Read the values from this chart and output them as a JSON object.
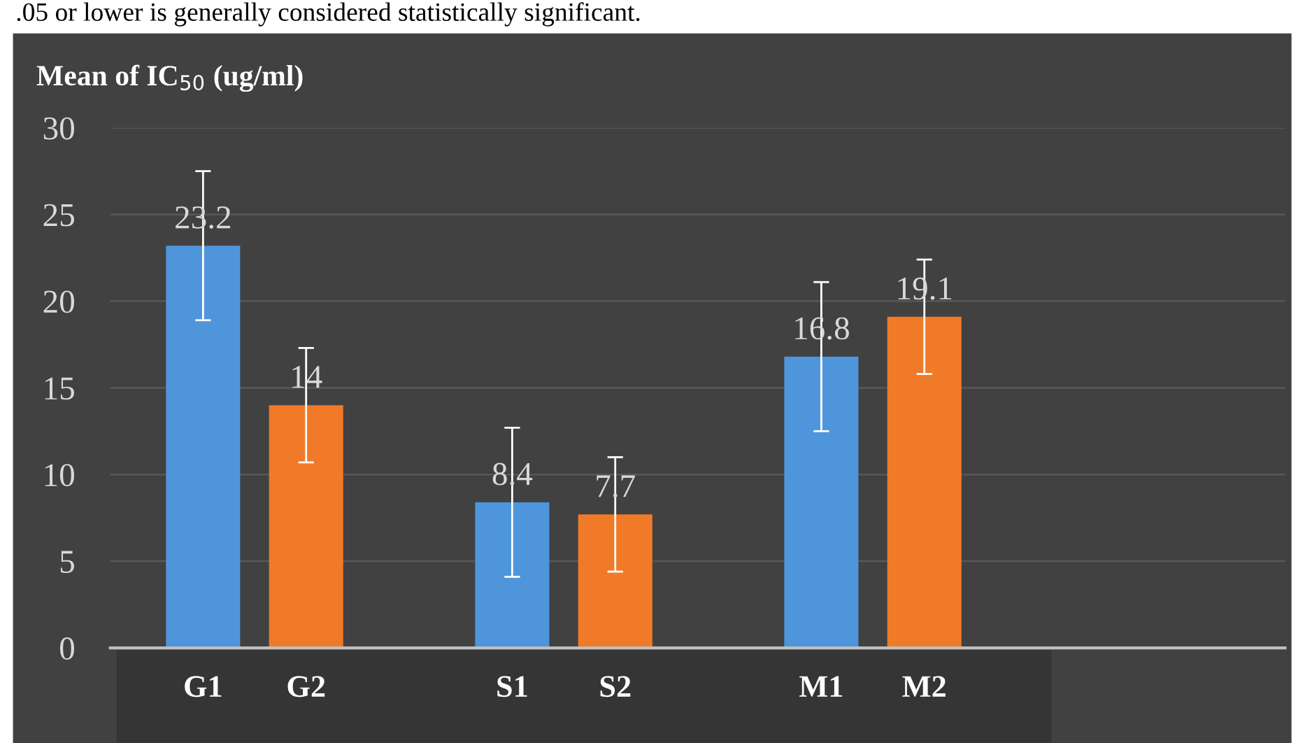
{
  "chart_data": {
    "type": "bar",
    "title": "Mean of IC$_{50}$ (ug/ml)",
    "annotations": [
      ".05 or lower is generally considered statistically significant."
    ],
    "categories": [
      "G1",
      "G2",
      null,
      "S1",
      "S2",
      null,
      "M1",
      "M2",
      null,
      null,
      null
    ],
    "values": [
      23.2,
      14,
      null,
      8.4,
      7.7,
      null,
      16.8,
      19.1,
      null,
      null,
      null
    ],
    "colors": [
      "#4f95dc",
      "#f07a28",
      null,
      "#4f95dc",
      "#f07a28",
      null,
      "#4f95dc",
      "#f07a28",
      null,
      null,
      null
    ],
    "errors": [
      4.3,
      3.3,
      null,
      4.3,
      3.3,
      null,
      4.3,
      3.3,
      null,
      null,
      null
    ],
    "data_labels": true,
    "ylim": [
      0,
      30
    ],
    "yticks": [
      0,
      5,
      10,
      15,
      20,
      25,
      30
    ],
    "grid": "y",
    "legend": false
  }
}
